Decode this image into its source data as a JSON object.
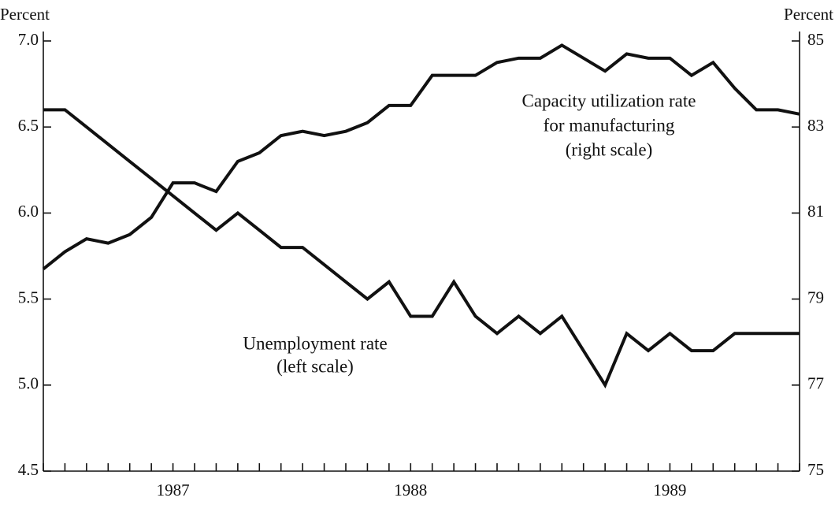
{
  "chart_data": {
    "type": "line",
    "y_label": "Percent",
    "y2_label": "Percent",
    "categories": [
      null,
      null,
      null,
      null,
      null,
      null,
      "1987",
      null,
      null,
      null,
      null,
      null,
      null,
      null,
      null,
      null,
      null,
      "1988",
      null,
      null,
      null,
      null,
      null,
      null,
      null,
      null,
      null,
      null,
      null,
      "1989",
      null,
      null,
      null,
      null,
      null,
      null
    ],
    "series": [
      {
        "name": "Unemployment rate",
        "color": "#111111",
        "axis": "y",
        "values": [
          6.6,
          6.6,
          6.5,
          6.4,
          6.3,
          6.2,
          6.1,
          6.0,
          5.9,
          6.0,
          5.9,
          5.8,
          5.8,
          5.7,
          5.6,
          5.5,
          5.6,
          5.4,
          5.4,
          5.6,
          5.4,
          5.3,
          5.4,
          5.3,
          5.4,
          5.2,
          5.0,
          5.3,
          5.2,
          5.3,
          5.2,
          5.2,
          5.3,
          5.3,
          5.3,
          5.3
        ]
      },
      {
        "name": "Capacity utilization rate for manufacturing",
        "color": "#111111",
        "axis": "y2",
        "values": [
          79.7,
          80.1,
          80.4,
          80.3,
          80.5,
          80.9,
          81.7,
          81.7,
          81.5,
          82.2,
          82.4,
          82.8,
          82.9,
          82.8,
          82.9,
          83.1,
          83.5,
          83.5,
          84.2,
          84.2,
          84.2,
          84.5,
          84.6,
          84.6,
          84.9,
          84.6,
          84.3,
          84.7,
          84.6,
          84.6,
          84.2,
          84.5,
          83.9,
          83.4,
          83.4,
          83.3
        ]
      }
    ],
    "annotations": [
      {
        "lines": [
          "Capacity utilization rate",
          "for manufacturing",
          "(right scale)"
        ]
      },
      {
        "lines": [
          "Unemployment rate",
          "(left scale)"
        ]
      }
    ],
    "ylim": [
      4.5,
      7.0
    ],
    "yticks": [
      4.5,
      {
        "value": 5.0,
        "label": "5.0"
      },
      5.5,
      {
        "value": 6.0,
        "label": "6.0"
      },
      6.5,
      {
        "value": 7.0,
        "label": "7.0"
      }
    ],
    "y2lim": [
      75,
      85
    ],
    "y2ticks": [
      75,
      77,
      79,
      81,
      83,
      85
    ]
  }
}
